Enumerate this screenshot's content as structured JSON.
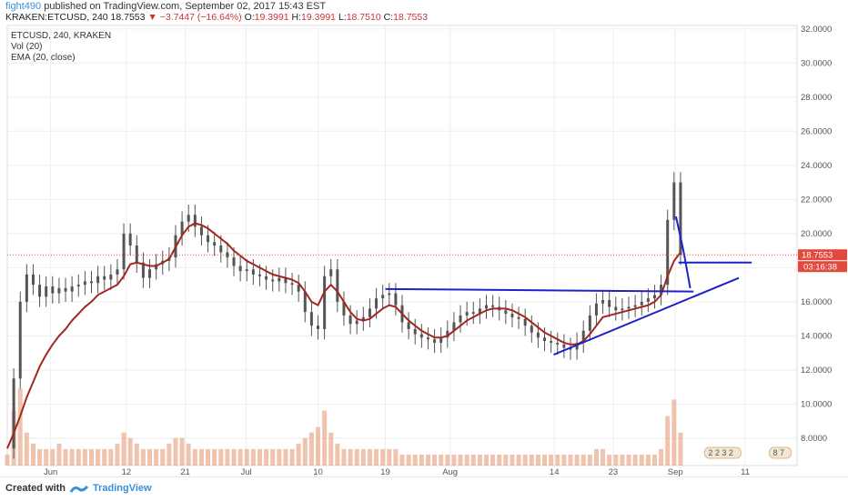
{
  "header": {
    "user": "fight490",
    "published": "published on TradingView.com, September 02, 2017 15:43 EST",
    "symbol_line_prefix": "KRAKEN:ETCUSD, 240  18.7553",
    "change": "▼ −3.7447 (−16.64%)",
    "ohlc_o_label": "O:",
    "ohlc_o": "19.3991",
    "ohlc_h_label": "H:",
    "ohlc_h": "19.3991",
    "ohlc_l_label": "L:",
    "ohlc_l": "18.7510",
    "ohlc_c_label": "C:",
    "ohlc_c": "18.7553"
  },
  "legend": {
    "line1": "ETCUSD, 240, KRAKEN",
    "line2": "Vol (20)",
    "line3": "EMA (20, close)"
  },
  "footer": {
    "created_with": "Created with",
    "brand": "TradingView"
  },
  "colors": {
    "candle": "#555555",
    "ema": "#a0281e",
    "trend_lines": "#1e22c8",
    "price_label": "#e2493c",
    "time_label": "#e2493c",
    "volume": "#e8a98a",
    "grid": "#eeeeee"
  },
  "chart_data": {
    "type": "line",
    "title": "ETCUSD, 240, KRAKEN",
    "y_ticks": [
      "32.0000",
      "30.0000",
      "28.0000",
      "26.0000",
      "24.0000",
      "22.0000",
      "20.0000",
      "18.0000",
      "16.0000",
      "14.0000",
      "12.0000",
      "10.0000",
      "8.0000"
    ],
    "y_tick_values": [
      32,
      30,
      28,
      26,
      24,
      22,
      20,
      18,
      16,
      14,
      12,
      10,
      8
    ],
    "ylim": [
      6.4,
      32.2
    ],
    "x_ticks": [
      "Jun",
      "12",
      "21",
      "Jul",
      "10",
      "19",
      "Aug",
      "14",
      "23",
      "Sep",
      "11"
    ],
    "x_tick_values": [
      6.7,
      18.4,
      27.5,
      36.9,
      48.0,
      58.4,
      68.4,
      84.5,
      93.6,
      103.2,
      114.0
    ],
    "xlim": [
      0,
      122
    ],
    "last_price": "18.7553",
    "last_price_value": 18.7553,
    "countdown": "03:16:38",
    "indicator_badge_left": "2 2 3 2",
    "indicator_badge_right": "8 7",
    "price_series": [
      [
        0,
        7.4
      ],
      [
        1,
        11.5
      ],
      [
        2,
        16.0
      ],
      [
        3,
        17.6
      ],
      [
        4,
        17.0
      ],
      [
        5,
        16.3
      ],
      [
        6,
        16.9
      ],
      [
        7,
        16.5
      ],
      [
        8,
        16.8
      ],
      [
        9,
        16.6
      ],
      [
        10,
        16.9
      ],
      [
        11,
        17.0
      ],
      [
        12,
        17.2
      ],
      [
        13,
        17.1
      ],
      [
        14,
        17.5
      ],
      [
        15,
        17.3
      ],
      [
        16,
        17.6
      ],
      [
        17,
        17.9
      ],
      [
        18,
        20.0
      ],
      [
        19,
        19.3
      ],
      [
        20,
        18.3
      ],
      [
        21,
        17.4
      ],
      [
        22,
        17.9
      ],
      [
        23,
        18.2
      ],
      [
        24,
        18.4
      ],
      [
        25,
        18.6
      ],
      [
        26,
        19.9
      ],
      [
        27,
        20.7
      ],
      [
        28,
        21.1
      ],
      [
        29,
        20.4
      ],
      [
        30,
        19.9
      ],
      [
        31,
        19.5
      ],
      [
        32,
        19.3
      ],
      [
        33,
        18.9
      ],
      [
        34,
        18.6
      ],
      [
        35,
        18.1
      ],
      [
        36,
        17.8
      ],
      [
        37,
        17.9
      ],
      [
        38,
        17.6
      ],
      [
        39,
        17.5
      ],
      [
        40,
        17.3
      ],
      [
        41,
        17.2
      ],
      [
        42,
        17.4
      ],
      [
        43,
        17.1
      ],
      [
        44,
        17.0
      ],
      [
        45,
        16.6
      ],
      [
        46,
        15.4
      ],
      [
        47,
        14.6
      ],
      [
        48,
        14.4
      ],
      [
        49,
        17.5
      ],
      [
        50,
        17.9
      ],
      [
        51,
        16.0
      ],
      [
        52,
        15.2
      ],
      [
        53,
        14.7
      ],
      [
        54,
        14.9
      ],
      [
        55,
        15.1
      ],
      [
        56,
        15.6
      ],
      [
        57,
        16.2
      ],
      [
        58,
        16.4
      ],
      [
        59,
        16.5
      ],
      [
        60,
        15.8
      ],
      [
        61,
        14.8
      ],
      [
        62,
        14.4
      ],
      [
        63,
        14.1
      ],
      [
        64,
        13.9
      ],
      [
        65,
        13.8
      ],
      [
        66,
        13.6
      ],
      [
        67,
        13.9
      ],
      [
        68,
        14.3
      ],
      [
        69,
        14.8
      ],
      [
        70,
        15.2
      ],
      [
        71,
        15.4
      ],
      [
        72,
        15.3
      ],
      [
        73,
        15.6
      ],
      [
        74,
        15.8
      ],
      [
        75,
        15.7
      ],
      [
        76,
        15.5
      ],
      [
        77,
        15.3
      ],
      [
        78,
        15.1
      ],
      [
        79,
        15.0
      ],
      [
        80,
        14.6
      ],
      [
        81,
        14.2
      ],
      [
        82,
        13.9
      ],
      [
        83,
        13.7
      ],
      [
        84,
        13.6
      ],
      [
        85,
        13.5
      ],
      [
        86,
        13.3
      ],
      [
        87,
        13.2
      ],
      [
        88,
        13.6
      ],
      [
        89,
        14.3
      ],
      [
        90,
        15.2
      ],
      [
        91,
        15.9
      ],
      [
        92,
        16.1
      ],
      [
        93,
        15.7
      ],
      [
        94,
        15.5
      ],
      [
        95,
        15.6
      ],
      [
        96,
        15.7
      ],
      [
        97,
        15.8
      ],
      [
        98,
        16.0
      ],
      [
        99,
        16.2
      ],
      [
        100,
        16.4
      ],
      [
        101,
        17.0
      ],
      [
        102,
        20.8
      ],
      [
        103,
        23.0
      ],
      [
        104,
        18.7553
      ]
    ],
    "ema_series": [
      [
        0,
        7.4
      ],
      [
        1,
        8.3
      ],
      [
        2,
        9.3
      ],
      [
        3,
        10.4
      ],
      [
        4,
        11.3
      ],
      [
        5,
        12.2
      ],
      [
        6,
        12.9
      ],
      [
        7,
        13.5
      ],
      [
        8,
        14.0
      ],
      [
        9,
        14.4
      ],
      [
        10,
        14.9
      ],
      [
        11,
        15.3
      ],
      [
        12,
        15.7
      ],
      [
        13,
        16.0
      ],
      [
        14,
        16.4
      ],
      [
        15,
        16.6
      ],
      [
        16,
        16.8
      ],
      [
        17,
        17.0
      ],
      [
        18,
        17.5
      ],
      [
        19,
        18.2
      ],
      [
        20,
        18.3
      ],
      [
        21,
        18.2
      ],
      [
        22,
        18.1
      ],
      [
        23,
        18.1
      ],
      [
        24,
        18.3
      ],
      [
        25,
        18.5
      ],
      [
        26,
        19.2
      ],
      [
        27,
        19.9
      ],
      [
        28,
        20.4
      ],
      [
        29,
        20.6
      ],
      [
        30,
        20.5
      ],
      [
        31,
        20.3
      ],
      [
        32,
        20.0
      ],
      [
        33,
        19.7
      ],
      [
        34,
        19.4
      ],
      [
        35,
        19.0
      ],
      [
        36,
        18.7
      ],
      [
        37,
        18.4
      ],
      [
        38,
        18.2
      ],
      [
        39,
        18.0
      ],
      [
        40,
        17.8
      ],
      [
        41,
        17.6
      ],
      [
        42,
        17.5
      ],
      [
        43,
        17.4
      ],
      [
        44,
        17.3
      ],
      [
        45,
        17.1
      ],
      [
        46,
        16.6
      ],
      [
        47,
        16.0
      ],
      [
        48,
        15.8
      ],
      [
        49,
        16.6
      ],
      [
        50,
        17.0
      ],
      [
        51,
        16.6
      ],
      [
        52,
        16.0
      ],
      [
        53,
        15.4
      ],
      [
        54,
        15.0
      ],
      [
        55,
        14.9
      ],
      [
        56,
        15.0
      ],
      [
        57,
        15.3
      ],
      [
        58,
        15.6
      ],
      [
        59,
        15.8
      ],
      [
        60,
        15.7
      ],
      [
        61,
        15.3
      ],
      [
        62,
        14.9
      ],
      [
        63,
        14.6
      ],
      [
        64,
        14.3
      ],
      [
        65,
        14.1
      ],
      [
        66,
        13.9
      ],
      [
        67,
        13.9
      ],
      [
        68,
        14.0
      ],
      [
        69,
        14.3
      ],
      [
        70,
        14.6
      ],
      [
        71,
        14.9
      ],
      [
        72,
        15.1
      ],
      [
        73,
        15.3
      ],
      [
        74,
        15.5
      ],
      [
        75,
        15.6
      ],
      [
        76,
        15.6
      ],
      [
        77,
        15.6
      ],
      [
        78,
        15.5
      ],
      [
        79,
        15.3
      ],
      [
        80,
        15.1
      ],
      [
        81,
        14.8
      ],
      [
        82,
        14.5
      ],
      [
        83,
        14.2
      ],
      [
        84,
        14.0
      ],
      [
        85,
        13.8
      ],
      [
        86,
        13.6
      ],
      [
        87,
        13.5
      ],
      [
        88,
        13.5
      ],
      [
        89,
        13.7
      ],
      [
        90,
        14.1
      ],
      [
        91,
        14.6
      ],
      [
        92,
        15.1
      ],
      [
        93,
        15.2
      ],
      [
        94,
        15.3
      ],
      [
        95,
        15.4
      ],
      [
        96,
        15.5
      ],
      [
        97,
        15.6
      ],
      [
        98,
        15.7
      ],
      [
        99,
        15.8
      ],
      [
        100,
        16.0
      ],
      [
        101,
        16.4
      ],
      [
        102,
        17.5
      ],
      [
        103,
        18.4
      ],
      [
        104,
        18.9
      ]
    ],
    "volume_series": [
      [
        0,
        2
      ],
      [
        1,
        10
      ],
      [
        2,
        14
      ],
      [
        3,
        6
      ],
      [
        4,
        4
      ],
      [
        5,
        3
      ],
      [
        6,
        3
      ],
      [
        7,
        3
      ],
      [
        8,
        4
      ],
      [
        9,
        3
      ],
      [
        10,
        3
      ],
      [
        11,
        3
      ],
      [
        12,
        3
      ],
      [
        13,
        3
      ],
      [
        14,
        3
      ],
      [
        15,
        3
      ],
      [
        16,
        3
      ],
      [
        17,
        4
      ],
      [
        18,
        6
      ],
      [
        19,
        5
      ],
      [
        20,
        4
      ],
      [
        21,
        3
      ],
      [
        22,
        3
      ],
      [
        23,
        3
      ],
      [
        24,
        3
      ],
      [
        25,
        4
      ],
      [
        26,
        5
      ],
      [
        27,
        5
      ],
      [
        28,
        4
      ],
      [
        29,
        3
      ],
      [
        30,
        3
      ],
      [
        31,
        3
      ],
      [
        32,
        3
      ],
      [
        33,
        3
      ],
      [
        34,
        3
      ],
      [
        35,
        3
      ],
      [
        36,
        3
      ],
      [
        37,
        3
      ],
      [
        38,
        3
      ],
      [
        39,
        3
      ],
      [
        40,
        3
      ],
      [
        41,
        3
      ],
      [
        42,
        3
      ],
      [
        43,
        3
      ],
      [
        44,
        3
      ],
      [
        45,
        4
      ],
      [
        46,
        5
      ],
      [
        47,
        6
      ],
      [
        48,
        7
      ],
      [
        49,
        10
      ],
      [
        50,
        6
      ],
      [
        51,
        4
      ],
      [
        52,
        3
      ],
      [
        53,
        3
      ],
      [
        54,
        3
      ],
      [
        55,
        3
      ],
      [
        56,
        3
      ],
      [
        57,
        3
      ],
      [
        58,
        3
      ],
      [
        59,
        3
      ],
      [
        60,
        3
      ],
      [
        61,
        2
      ],
      [
        62,
        2
      ],
      [
        63,
        2
      ],
      [
        64,
        2
      ],
      [
        65,
        2
      ],
      [
        66,
        2
      ],
      [
        67,
        2
      ],
      [
        68,
        2
      ],
      [
        69,
        2
      ],
      [
        70,
        2
      ],
      [
        71,
        2
      ],
      [
        72,
        2
      ],
      [
        73,
        2
      ],
      [
        74,
        2
      ],
      [
        75,
        2
      ],
      [
        76,
        2
      ],
      [
        77,
        2
      ],
      [
        78,
        2
      ],
      [
        79,
        2
      ],
      [
        80,
        2
      ],
      [
        81,
        2
      ],
      [
        82,
        2
      ],
      [
        83,
        2
      ],
      [
        84,
        2
      ],
      [
        85,
        2
      ],
      [
        86,
        2
      ],
      [
        87,
        2
      ],
      [
        88,
        2
      ],
      [
        89,
        2
      ],
      [
        90,
        2
      ],
      [
        91,
        3
      ],
      [
        92,
        3
      ],
      [
        93,
        2
      ],
      [
        94,
        2
      ],
      [
        95,
        2
      ],
      [
        96,
        2
      ],
      [
        97,
        2
      ],
      [
        98,
        2
      ],
      [
        99,
        2
      ],
      [
        100,
        2
      ],
      [
        101,
        3
      ],
      [
        102,
        9
      ],
      [
        103,
        12
      ],
      [
        104,
        6
      ]
    ],
    "drawings": [
      {
        "name": "resistance-line",
        "points": [
          [
            58.4,
            16.75
          ],
          [
            106.0,
            16.6
          ]
        ]
      },
      {
        "name": "ascending-trendline",
        "points": [
          [
            84.4,
            12.9
          ],
          [
            113.0,
            17.4
          ]
        ]
      },
      {
        "name": "support-horizontal",
        "points": [
          [
            103.7,
            18.3
          ],
          [
            115.0,
            18.3
          ]
        ]
      },
      {
        "name": "pennant-leg-1",
        "points": [
          [
            103.3,
            21.0
          ],
          [
            104.5,
            18.9
          ]
        ]
      },
      {
        "name": "pennant-leg-2",
        "points": [
          [
            104.5,
            18.9
          ],
          [
            105.5,
            16.8
          ]
        ]
      }
    ]
  }
}
